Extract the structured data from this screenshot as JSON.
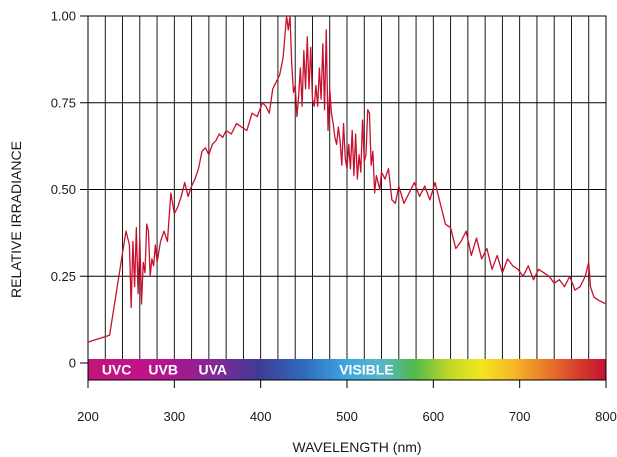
{
  "chart_data": {
    "type": "line",
    "title": "",
    "xlabel": "WAVELENGTH (nm)",
    "ylabel": "RELATIVE IRRADIANCE",
    "xlim": [
      200,
      800
    ],
    "ylim": [
      0,
      1.0
    ],
    "x_ticks": [
      200,
      300,
      400,
      500,
      600,
      700,
      800
    ],
    "x_tick_labels": [
      "200",
      "300",
      "400",
      "500",
      "600",
      "700",
      "800"
    ],
    "y_ticks": [
      0,
      0.25,
      0.5,
      0.75,
      1.0
    ],
    "y_tick_labels": [
      "0",
      "0.25",
      "0.50",
      "0.75",
      "1.00"
    ],
    "grid": true,
    "line_color": "#c8102e",
    "spectrum_bands": [
      {
        "label": "UVC",
        "x": 216
      },
      {
        "label": "UVB",
        "x": 270
      },
      {
        "label": "UVA",
        "x": 328
      },
      {
        "label": "VISIBLE",
        "x": 491
      }
    ],
    "series": [
      {
        "x": [
          200,
          225,
          244,
          248,
          250,
          252,
          254,
          256,
          258,
          260,
          262,
          264,
          266,
          268,
          270,
          272,
          274,
          276,
          278,
          280,
          284,
          288,
          292,
          296,
          300,
          304,
          308,
          312,
          316,
          320,
          324,
          328,
          332,
          336,
          340,
          344,
          348,
          352,
          356,
          360,
          366,
          372,
          378,
          384,
          390,
          396,
          402,
          406,
          410,
          414,
          418,
          422,
          426,
          430,
          432,
          434,
          436,
          438,
          440,
          442,
          444,
          446,
          448,
          450,
          452,
          454,
          456,
          458,
          460,
          462,
          464,
          466,
          468,
          470,
          472,
          474,
          476,
          478,
          480,
          482,
          484,
          486,
          488,
          490,
          492,
          494,
          496,
          498,
          500,
          502,
          504,
          506,
          508,
          510,
          512,
          514,
          516,
          518,
          520,
          522,
          524,
          526,
          528,
          530,
          532,
          534,
          536,
          538,
          540,
          544,
          548,
          552,
          556,
          560,
          566,
          572,
          578,
          584,
          590,
          596,
          602,
          608,
          614,
          620,
          626,
          632,
          638,
          644,
          650,
          656,
          662,
          668,
          674,
          680,
          686,
          692,
          698,
          704,
          710,
          716,
          722,
          728,
          734,
          740,
          746,
          752,
          758,
          764,
          770,
          776,
          780,
          782,
          786,
          792,
          800
        ],
        "y": [
          0.06,
          0.08,
          0.38,
          0.34,
          0.16,
          0.35,
          0.22,
          0.39,
          0.2,
          0.36,
          0.17,
          0.29,
          0.26,
          0.4,
          0.38,
          0.25,
          0.3,
          0.28,
          0.34,
          0.29,
          0.35,
          0.38,
          0.35,
          0.49,
          0.43,
          0.45,
          0.48,
          0.52,
          0.48,
          0.51,
          0.53,
          0.56,
          0.61,
          0.62,
          0.6,
          0.63,
          0.64,
          0.66,
          0.65,
          0.67,
          0.66,
          0.69,
          0.68,
          0.67,
          0.72,
          0.71,
          0.75,
          0.74,
          0.72,
          0.79,
          0.81,
          0.83,
          0.88,
          1.0,
          0.96,
          1.0,
          0.86,
          0.78,
          0.8,
          0.71,
          0.77,
          0.85,
          0.74,
          0.9,
          0.79,
          0.94,
          0.79,
          0.91,
          0.76,
          0.74,
          0.8,
          0.74,
          0.85,
          0.76,
          0.92,
          0.73,
          0.96,
          0.67,
          0.79,
          0.72,
          0.69,
          0.65,
          0.63,
          0.68,
          0.64,
          0.57,
          0.69,
          0.59,
          0.56,
          0.63,
          0.56,
          0.67,
          0.54,
          0.66,
          0.53,
          0.6,
          0.55,
          0.7,
          0.58,
          0.6,
          0.73,
          0.72,
          0.57,
          0.61,
          0.49,
          0.54,
          0.52,
          0.5,
          0.55,
          0.53,
          0.56,
          0.47,
          0.46,
          0.51,
          0.46,
          0.49,
          0.52,
          0.48,
          0.51,
          0.47,
          0.52,
          0.46,
          0.4,
          0.39,
          0.33,
          0.35,
          0.38,
          0.31,
          0.36,
          0.3,
          0.33,
          0.27,
          0.31,
          0.26,
          0.3,
          0.28,
          0.27,
          0.25,
          0.28,
          0.24,
          0.27,
          0.26,
          0.25,
          0.23,
          0.24,
          0.22,
          0.25,
          0.21,
          0.22,
          0.25,
          0.29,
          0.22,
          0.19,
          0.18,
          0.17
        ]
      }
    ]
  }
}
